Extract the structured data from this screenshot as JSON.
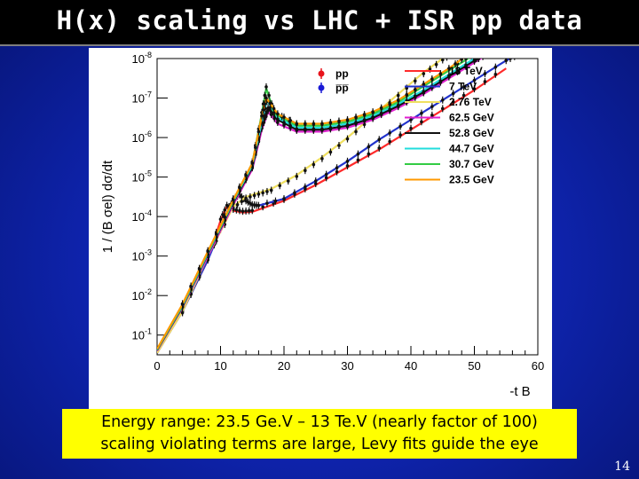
{
  "slide": {
    "title": "H(x) scaling vs LHC + ISR pp data",
    "caption_line1": "Energy range: 23.5 Ge.V – 13 Te.V (nearly factor of 100)",
    "caption_line2": "scaling violating terms are large, Levy fits guide the eye",
    "page_number": "14"
  },
  "chart_data": {
    "type": "line",
    "title": "",
    "xlabel": "-t B",
    "ylabel": "1 / (B σel) dσ/dt",
    "xlim": [
      0,
      60
    ],
    "ylim_log10": [
      -8,
      -0.5
    ],
    "yscale": "log",
    "x_ticks": [
      0,
      10,
      20,
      30,
      40,
      50,
      60
    ],
    "y_ticks": [
      "10^-1",
      "10^-2",
      "10^-3",
      "10^-4",
      "10^-5",
      "10^-6",
      "10^-7",
      "10^-8"
    ],
    "y_tick_exponents": [
      -1,
      -2,
      -3,
      -4,
      -5,
      -6,
      -7,
      -8
    ],
    "markers_legend": [
      {
        "label": "pp",
        "color": "#e8141c"
      },
      {
        "label": "p̅p̅",
        "color": "#1a1ad6"
      }
    ],
    "series": [
      {
        "name": "13 TeV",
        "color": "#ff2a2a",
        "x": [
          0,
          4,
          8,
          10,
          11,
          12,
          13.5,
          15,
          20,
          25,
          30,
          35,
          40,
          45,
          50,
          55
        ],
        "log10y": [
          -0.55,
          -1.6,
          -2.9,
          -3.9,
          -4.25,
          -4.15,
          -4.1,
          -4.12,
          -4.4,
          -4.8,
          -5.25,
          -5.7,
          -6.2,
          -6.7,
          -7.2,
          -7.75
        ]
      },
      {
        "name": "7 TeV",
        "color": "#2233cc",
        "x": [
          0,
          4,
          8,
          11,
          12,
          13,
          14,
          15,
          16,
          20,
          25,
          30,
          35,
          40,
          45,
          50,
          55,
          57
        ],
        "log10y": [
          -0.55,
          -1.6,
          -2.9,
          -4.05,
          -4.45,
          -4.55,
          -4.4,
          -4.3,
          -4.28,
          -4.45,
          -4.9,
          -5.4,
          -5.95,
          -6.45,
          -6.95,
          -7.45,
          -7.95,
          -8.1
        ]
      },
      {
        "name": "2.76 TeV",
        "color": "#f0e060",
        "x": [
          0,
          4,
          8,
          12,
          14,
          16,
          18,
          22,
          26,
          30,
          34,
          38,
          42,
          45,
          47
        ],
        "log10y": [
          -0.55,
          -1.6,
          -3.0,
          -4.25,
          -4.5,
          -4.6,
          -4.7,
          -5.05,
          -5.5,
          -6.0,
          -6.55,
          -7.1,
          -7.65,
          -8.0,
          -8.2
        ]
      },
      {
        "name": "62.5 GeV",
        "color": "#e020d0",
        "x": [
          0,
          4,
          8,
          12,
          15,
          16.5,
          17.5,
          19,
          22,
          26,
          30,
          34,
          38,
          42,
          46,
          50,
          52
        ],
        "log10y": [
          -0.6,
          -1.7,
          -3.0,
          -4.3,
          -5.2,
          -6.2,
          -6.65,
          -6.35,
          -6.15,
          -6.15,
          -6.25,
          -6.45,
          -6.75,
          -7.1,
          -7.5,
          -7.9,
          -8.1
        ]
      },
      {
        "name": "52.8 GeV",
        "color": "#111111",
        "x": [
          0,
          4,
          8,
          12,
          15,
          16.5,
          17.5,
          19,
          22,
          26,
          30,
          34,
          38,
          42,
          46,
          50,
          52
        ],
        "log10y": [
          -0.62,
          -1.72,
          -3.05,
          -4.35,
          -5.25,
          -6.3,
          -6.75,
          -6.45,
          -6.2,
          -6.2,
          -6.3,
          -6.5,
          -6.8,
          -7.15,
          -7.55,
          -7.95,
          -8.1
        ]
      },
      {
        "name": "44.7 GeV",
        "color": "#22dddd",
        "x": [
          0,
          4,
          8,
          12,
          15,
          16.5,
          17.3,
          19,
          22,
          26,
          30,
          34,
          38,
          42,
          46,
          50,
          51
        ],
        "log10y": [
          -0.63,
          -1.74,
          -3.07,
          -4.38,
          -5.3,
          -6.4,
          -6.95,
          -6.5,
          -6.25,
          -6.25,
          -6.35,
          -6.55,
          -6.85,
          -7.2,
          -7.6,
          -8.0,
          -8.1
        ]
      },
      {
        "name": "30.7 GeV",
        "color": "#33cc44",
        "x": [
          0,
          4,
          8,
          12,
          15,
          16.5,
          17.2,
          18.5,
          22,
          26,
          30,
          34,
          38,
          42,
          46,
          50
        ],
        "log10y": [
          -0.64,
          -1.76,
          -3.1,
          -4.4,
          -5.35,
          -6.6,
          -7.25,
          -6.6,
          -6.3,
          -6.3,
          -6.4,
          -6.6,
          -6.9,
          -7.3,
          -7.7,
          -8.1
        ]
      },
      {
        "name": "23.5 GeV",
        "color": "#ff9900",
        "x": [
          0,
          4,
          8,
          12,
          15,
          16.5,
          17.2,
          19,
          22,
          26,
          30,
          34,
          38,
          42,
          46,
          49
        ],
        "log10y": [
          -0.65,
          -1.78,
          -3.12,
          -4.42,
          -5.35,
          -6.55,
          -7.0,
          -6.6,
          -6.35,
          -6.35,
          -6.45,
          -6.65,
          -6.95,
          -7.35,
          -7.75,
          -8.1
        ]
      }
    ]
  }
}
